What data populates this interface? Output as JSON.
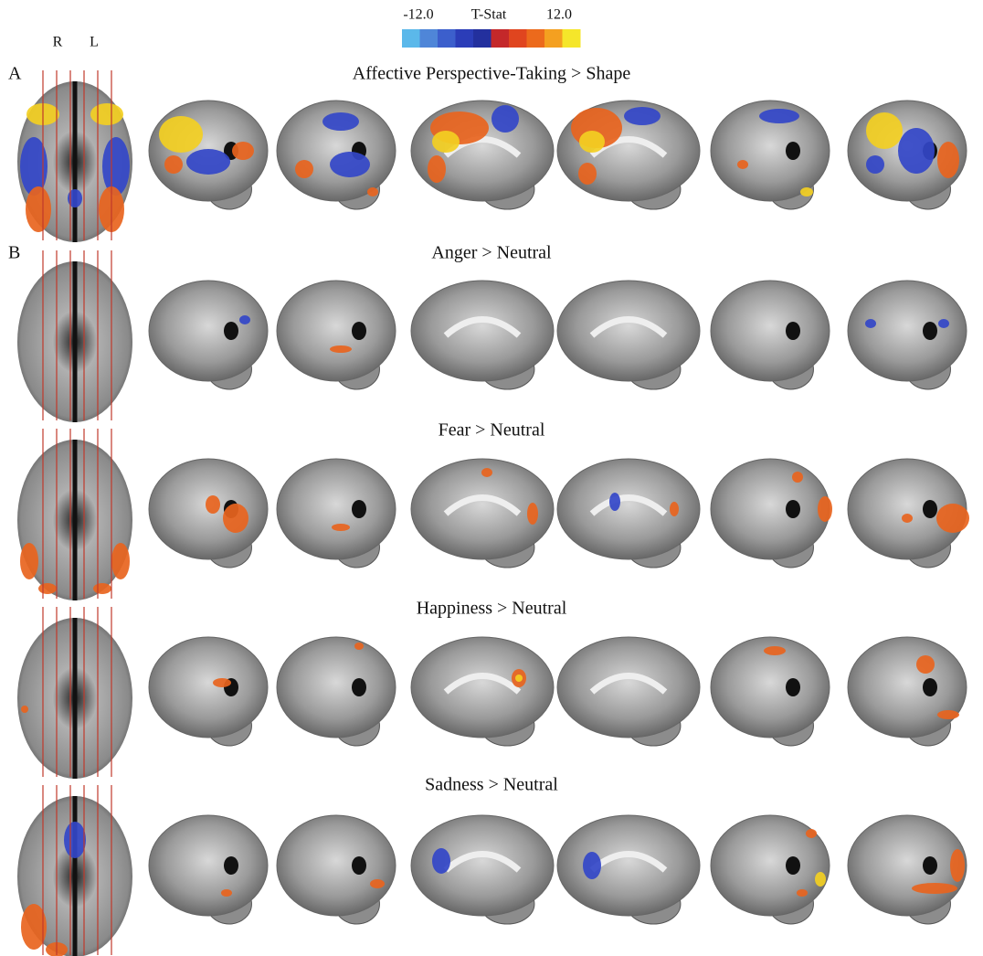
{
  "colorbar": {
    "min_label": "-12.0",
    "title": "T-Stat",
    "max_label": "12.0",
    "colors": [
      "#5bb8ea",
      "#4f86d8",
      "#3c5fcc",
      "#2b3db8",
      "#23309e",
      "#c4282a",
      "#e0451f",
      "#ec6a1c",
      "#f4a020",
      "#f5e62a"
    ]
  },
  "orientation": {
    "right": "R",
    "left": "L"
  },
  "rows": [
    {
      "panel": "A",
      "title": "Affective Perspective-Taking > Shape"
    },
    {
      "panel": "B",
      "title": "Anger > Neutral"
    },
    {
      "title": "Fear > Neutral"
    },
    {
      "title": "Happiness > Neutral"
    },
    {
      "title": "Sadness > Neutral"
    }
  ]
}
